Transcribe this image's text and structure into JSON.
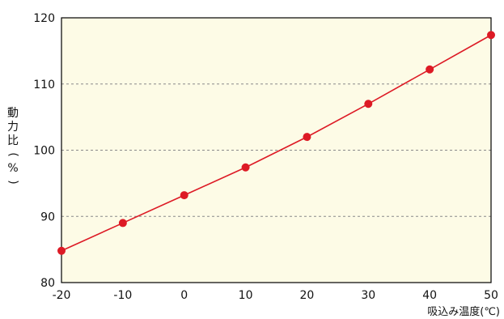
{
  "chart_data": {
    "type": "line",
    "title": "",
    "xlabel": "吸込み温度(℃)",
    "ylabel": "動力比(%)",
    "x": [
      -20,
      -10,
      0,
      10,
      20,
      30,
      40,
      50
    ],
    "xticks": [
      "-20",
      "-10",
      "0",
      "10",
      "20",
      "30",
      "40",
      "50"
    ],
    "yticks": [
      "80",
      "90",
      "100",
      "110",
      "120"
    ],
    "xlim": [
      -20,
      50
    ],
    "ylim": [
      80,
      120
    ],
    "grid": "horizontal-dashed",
    "series": [
      {
        "values": [
          84.8,
          89.0,
          93.2,
          97.4,
          102.0,
          107.0,
          112.2,
          117.4
        ]
      }
    ],
    "colors": {
      "plot_background": "#fdfbe6",
      "line": "#dd1a25",
      "marker": "#dd1a25",
      "grid": "#8a8a8a",
      "axis": "#000000"
    }
  }
}
